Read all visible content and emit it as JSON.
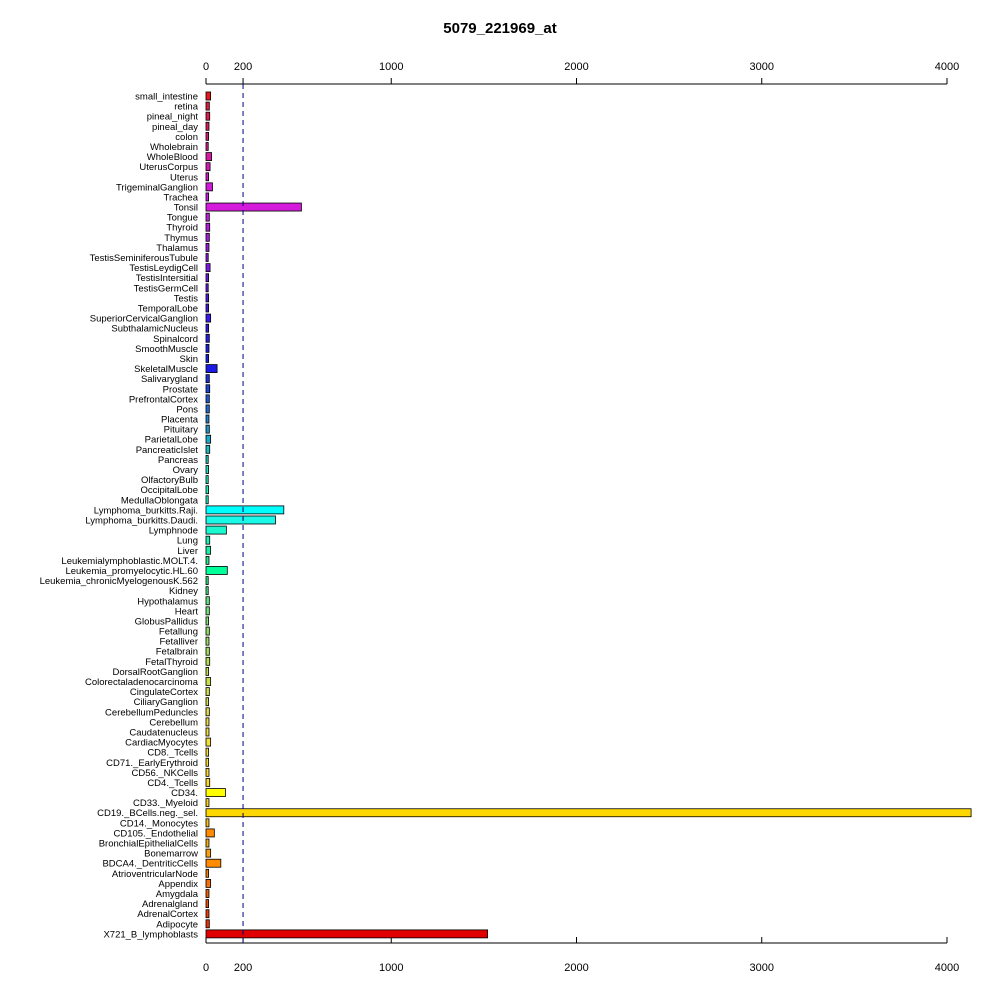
{
  "chart_data": {
    "type": "bar",
    "orientation": "horizontal",
    "title": "5079_221969_at",
    "xlabel": "",
    "ylabel": "",
    "xlim": [
      0,
      4000
    ],
    "x_ticks": [
      0,
      200,
      1000,
      2000,
      3000,
      4000
    ],
    "reference_line": 200,
    "grid": false,
    "categories": [
      "small_intestine",
      "retina",
      "pineal_night",
      "pineal_day",
      "colon",
      "Wholebrain",
      "WholeBlood",
      "UterusCorpus",
      "Uterus",
      "TrigeminalGanglion",
      "Trachea",
      "Tonsil",
      "Tongue",
      "Thyroid",
      "Thymus",
      "Thalamus",
      "TestisSeminiferousTubule",
      "TestisLeydigCell",
      "TestisIntersitial",
      "TestisGermCell",
      "Testis",
      "TemporalLobe",
      "SuperiorCervicalGanglion",
      "SubthalamicNucleus",
      "Spinalcord",
      "SmoothMuscle",
      "Skin",
      "SkeletalMuscle",
      "Salivarygland",
      "Prostate",
      "PrefrontalCortex",
      "Pons",
      "Placenta",
      "Pituitary",
      "ParietalLobe",
      "PancreaticIslet",
      "Pancreas",
      "Ovary",
      "OlfactoryBulb",
      "OccipitalLobe",
      "MedullaOblongata",
      "Lymphoma_burkitts.Raji.",
      "Lymphoma_burkitts.Daudi.",
      "Lymphnode",
      "Lung",
      "Liver",
      "Leukemialymphoblastic.MOLT.4.",
      "Leukemia_promyelocytic.HL.60",
      "Leukemia_chronicMyelogenousK.562",
      "Kidney",
      "Hypothalamus",
      "Heart",
      "GlobusPallidus",
      "Fetallung",
      "Fetalliver",
      "Fetalbrain",
      "FetalThyroid",
      "DorsalRootGanglion",
      "Colorectaladenocarcinoma",
      "CingulateCortex",
      "CiliaryGanglion",
      "CerebellumPeduncles",
      "Cerebellum",
      "Caudatenucleus",
      "CardiacMyocytes",
      "CD8._Tcells",
      "CD71._EarlyErythroid",
      "CD56._NKCells",
      "CD4._Tcells",
      "CD34.",
      "CD33._Myeloid",
      "CD19._BCells.neg._sel.",
      "CD14._Monocytes",
      "CD105._Endothelial",
      "BronchialEpithelialCells",
      "Bonemarrow",
      "BDCA4._DentriticCells",
      "AtrioventricularNode",
      "Appendix",
      "Amygdala",
      "Adrenalgland",
      "AdrenalCortex",
      "Adipocyte",
      "X721_B_lymphoblasts"
    ],
    "values": [
      25,
      18,
      20,
      16,
      14,
      12,
      30,
      22,
      14,
      35,
      14,
      515,
      18,
      20,
      18,
      16,
      12,
      22,
      14,
      12,
      14,
      14,
      25,
      14,
      18,
      16,
      14,
      60,
      18,
      20,
      18,
      18,
      16,
      18,
      25,
      20,
      12,
      14,
      12,
      14,
      12,
      420,
      375,
      110,
      20,
      25,
      16,
      115,
      12,
      12,
      18,
      18,
      14,
      18,
      16,
      18,
      20,
      14,
      25,
      18,
      14,
      18,
      16,
      16,
      25,
      14,
      14,
      16,
      20,
      105,
      16,
      4130,
      16,
      45,
      16,
      25,
      80,
      14,
      25,
      16,
      14,
      16,
      18,
      1520
    ],
    "bar_colors": [
      "#E21A1A",
      "#E01A3A",
      "#DE1A4E",
      "#DC1A62",
      "#DA1A78",
      "#D81A8C",
      "#D61AA0",
      "#D41AB4",
      "#D21AC8",
      "#CF1ADC",
      "#CC1AEE",
      "#D41ADB",
      "#C01ADF",
      "#B41AE0",
      "#A61AE1",
      "#981AE2",
      "#8A1AE3",
      "#7C1AE4",
      "#6E1AE5",
      "#601AE6",
      "#521AE7",
      "#441AE8",
      "#3A1AE9",
      "#301CEA",
      "#261EEB",
      "#1C20EC",
      "#1424ED",
      "#1A1AE4",
      "#1A30E0",
      "#1A44DC",
      "#1A58D8",
      "#1A6CD4",
      "#1A80D0",
      "#1A94CC",
      "#1AA8C8",
      "#1ABCC4",
      "#1AD0C0",
      "#1AE0BC",
      "#1AE8B8",
      "#1AF0B4",
      "#1AF4C0",
      "#00FFFF",
      "#1AF8E8",
      "#1AF8D0",
      "#1AF0B8",
      "#1AEEA0",
      "#1AEC88",
      "#00FF99",
      "#30EA80",
      "#48E880",
      "#5CE680",
      "#6CE478",
      "#7CE270",
      "#8AE068",
      "#98DE62",
      "#A4DE5C",
      "#B0DE56",
      "#BCDE52",
      "#C6DE4E",
      "#D0DE4A",
      "#D8DE46",
      "#E0DE42",
      "#E8DE3E",
      "#EEDE3A",
      "#F2DE38",
      "#F6DC34",
      "#F8DA30",
      "#FAD82C",
      "#FCD628",
      "#FFFF00",
      "#F8D020",
      "#FFD700",
      "#F8C018",
      "#FF8C00",
      "#F6B010",
      "#F8A010",
      "#FF8C00",
      "#F48008",
      "#F27008",
      "#F06006",
      "#EE5006",
      "#EC4004",
      "#EA3004",
      "#E00000"
    ]
  }
}
